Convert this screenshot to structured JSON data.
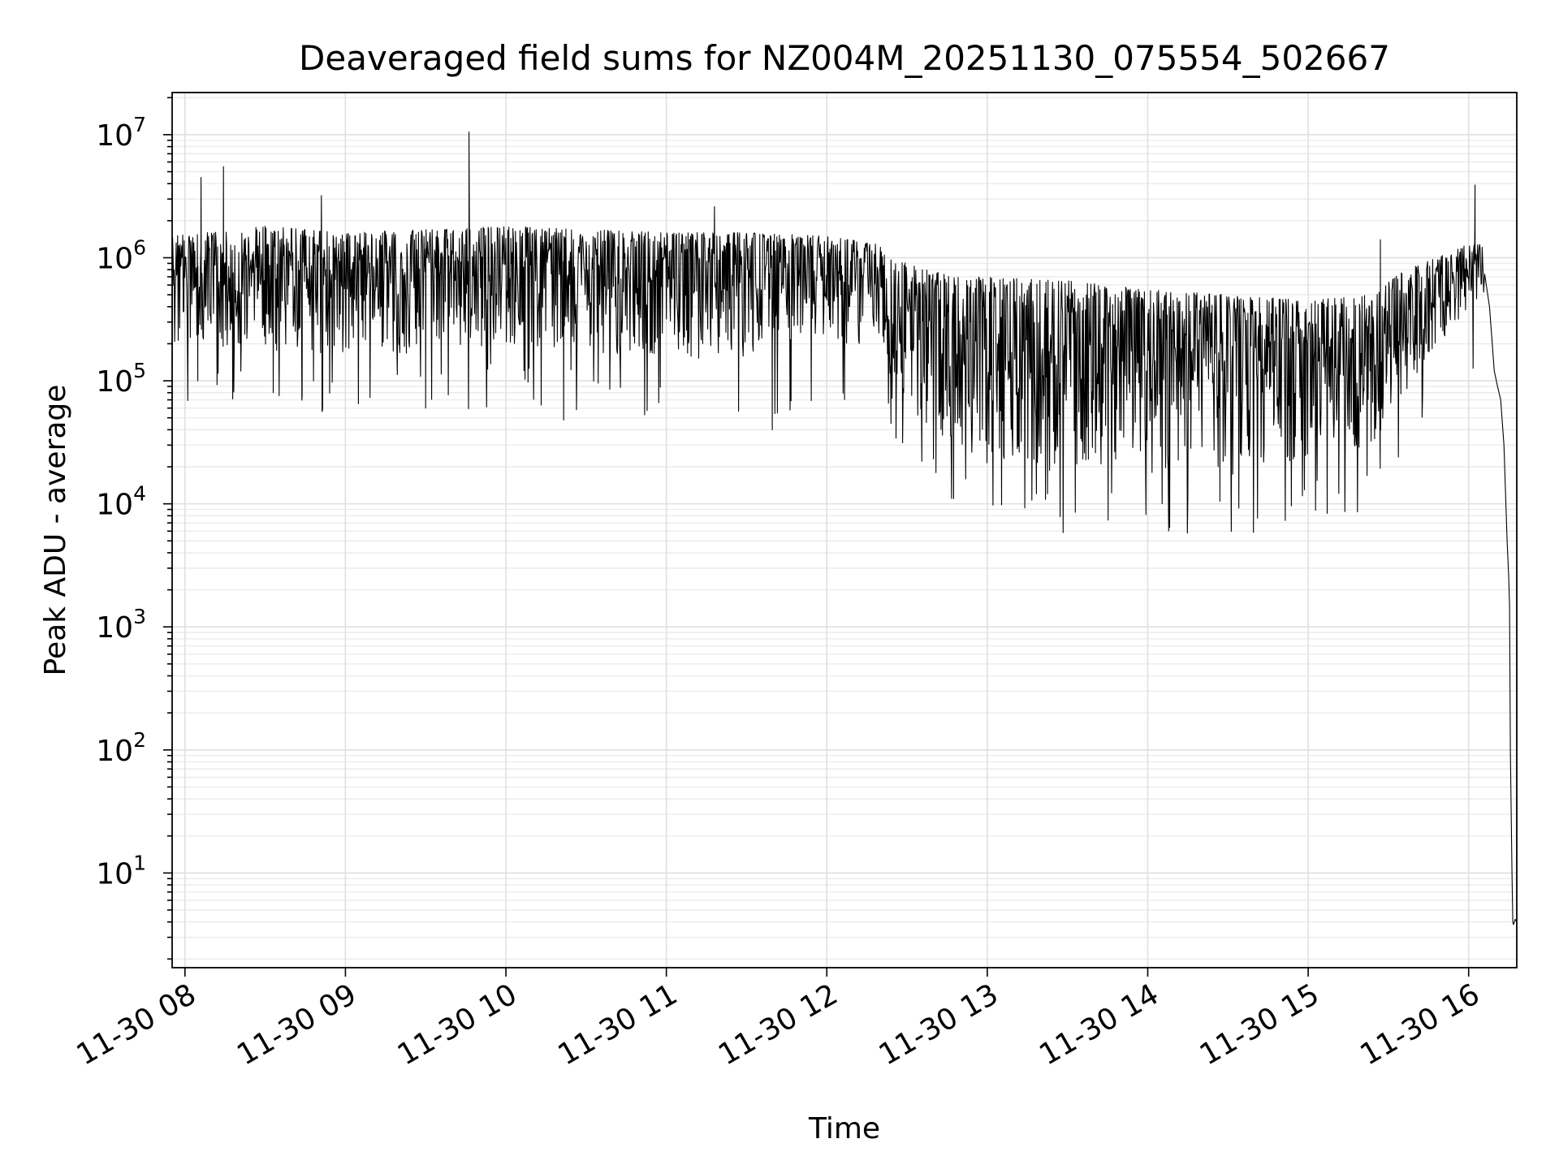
{
  "chart_data": {
    "type": "line",
    "title": "Deaveraged field sums for NZ004M_20251130_075554_502667",
    "xlabel": "Time",
    "ylabel": "Peak ADU - average",
    "yscale": "log",
    "x_unit": "hours since 11-30 08:00",
    "xlim": [
      -0.08,
      8.3
    ],
    "ylim": [
      1.7,
      22000000
    ],
    "grid": true,
    "legend": "none",
    "line_color": "#000000",
    "x_ticks": [
      {
        "value": 0,
        "label": "11-30 08"
      },
      {
        "value": 1,
        "label": "11-30 09"
      },
      {
        "value": 2,
        "label": "11-30 10"
      },
      {
        "value": 3,
        "label": "11-30 11"
      },
      {
        "value": 4,
        "label": "11-30 12"
      },
      {
        "value": 5,
        "label": "11-30 13"
      },
      {
        "value": 6,
        "label": "11-30 14"
      },
      {
        "value": 7,
        "label": "11-30 15"
      },
      {
        "value": 8,
        "label": "11-30 16"
      }
    ],
    "y_ticks": [
      {
        "value": 10,
        "base": "10",
        "exp": "1"
      },
      {
        "value": 100,
        "base": "10",
        "exp": "2"
      },
      {
        "value": 1000,
        "base": "10",
        "exp": "3"
      },
      {
        "value": 10000,
        "base": "10",
        "exp": "4"
      },
      {
        "value": 100000,
        "base": "10",
        "exp": "5"
      },
      {
        "value": 1000000,
        "base": "10",
        "exp": "6"
      },
      {
        "value": 10000000,
        "base": "10",
        "exp": "7"
      }
    ],
    "envelope": {
      "x": [
        -0.08,
        0.5,
        1.0,
        2.0,
        3.0,
        3.5,
        4.0,
        4.3,
        4.5,
        4.8,
        5.0,
        5.5,
        6.0,
        6.5,
        7.0,
        7.4,
        7.6,
        7.8,
        8.0,
        8.1
      ],
      "low": [
        200000,
        180000,
        150000,
        200000,
        150000,
        150000,
        200000,
        200000,
        60000,
        30000,
        20000,
        18000,
        17000,
        17000,
        22000,
        28000,
        80000,
        200000,
        350000,
        500000
      ],
      "high": [
        1500000,
        1800000,
        1600000,
        1800000,
        1600000,
        1600000,
        1500000,
        1300000,
        900000,
        700000,
        700000,
        650000,
        550000,
        500000,
        450000,
        500000,
        800000,
        1000000,
        1300000,
        1300000
      ]
    },
    "tail": {
      "x": [
        8.1,
        8.13,
        8.16,
        8.18,
        8.2,
        8.22,
        8.24,
        8.25,
        8.255,
        8.26,
        8.27,
        8.275,
        8.28,
        8.285,
        8.29,
        8.3
      ],
      "y": [
        900000,
        400000,
        120000,
        90000,
        70000,
        30000,
        5000,
        2500,
        1500,
        100,
        10,
        4,
        3.8,
        4,
        4.2,
        4
      ]
    },
    "spikes": [
      {
        "x": 0.1,
        "y": 4500000
      },
      {
        "x": 0.24,
        "y": 5500000
      },
      {
        "x": 0.85,
        "y": 3200000
      },
      {
        "x": 1.77,
        "y": 10500000
      },
      {
        "x": 3.3,
        "y": 2600000
      },
      {
        "x": 7.45,
        "y": 1400000
      },
      {
        "x": 8.04,
        "y": 3900000
      }
    ],
    "dips": [
      {
        "x": 0.08,
        "y": 100000
      },
      {
        "x": 0.55,
        "y": 80000
      },
      {
        "x": 0.73,
        "y": 75000
      },
      {
        "x": 1.5,
        "y": 60000
      },
      {
        "x": 2.36,
        "y": 48000
      },
      {
        "x": 3.66,
        "y": 40000
      },
      {
        "x": 4.4,
        "y": 45000
      },
      {
        "x": 6.45,
        "y": 10500
      }
    ]
  }
}
